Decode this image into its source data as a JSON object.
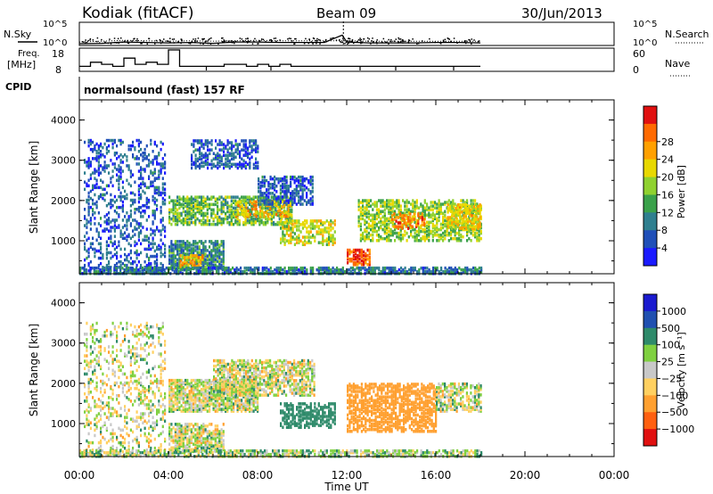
{
  "header": {
    "station": "Kodiak (fitACF)",
    "beam": "Beam 09",
    "date": "30/Jun/2013"
  },
  "labels": {
    "nsky": "N.Sky",
    "nsearch": "N.Search",
    "freq": "Freq.",
    "mhz": "[MHz]",
    "cpid": "CPID",
    "nave": "Nave",
    "cpid_name": "normalsound (fast) 157 RF",
    "xaxis": "Time UT",
    "yaxis": "Slant Range [km]",
    "power_scale": "Power [dB]",
    "velocity_scale": "Velocity [m s⁻¹]"
  },
  "chart_data": [
    {
      "type": "line",
      "panel": "noise",
      "ylabel_left": "N.Sky",
      "ylabel_right": "N.Search",
      "yticks_left": [
        "10^5",
        "10^0"
      ],
      "yticks_right": [
        "10^5",
        "10^0"
      ],
      "series": [
        {
          "name": "N.Sky",
          "x_hours": [
            0,
            1,
            2,
            3,
            4,
            5,
            6,
            7,
            8,
            9,
            10,
            11,
            11.8,
            12,
            13,
            14,
            15,
            16,
            17,
            18
          ],
          "values_log10": [
            0.2,
            0.3,
            0.6,
            0.5,
            0.4,
            0.5,
            0.3,
            0.6,
            0.6,
            0.5,
            0.5,
            0.5,
            2.2,
            0.6,
            0.4,
            0.4,
            0.4,
            0.5,
            0.5,
            0.4
          ]
        },
        {
          "name": "N.Search",
          "x_hours": [
            0,
            1,
            2,
            3,
            4,
            5,
            6,
            7,
            8,
            9,
            10,
            11,
            12,
            13,
            14,
            15,
            16,
            17,
            18
          ],
          "values_log10": [
            0.6,
            0.8,
            1.0,
            0.9,
            0.8,
            0.9,
            0.8,
            0.9,
            1.0,
            0.9,
            0.9,
            0.9,
            0.9,
            0.8,
            0.8,
            0.8,
            0.8,
            0.8,
            0.8
          ]
        }
      ]
    },
    {
      "type": "line",
      "panel": "frequency",
      "ylabel_left": "Freq. [MHz]",
      "ylabel_right": "Nave",
      "yticks_left": [
        "18",
        "8"
      ],
      "yticks_right": [
        "60",
        "0"
      ],
      "series": [
        {
          "name": "Freq.",
          "x_hours": [
            0,
            0.5,
            1,
            1.5,
            2,
            2.5,
            3,
            3.5,
            4,
            4.5,
            5,
            5.5,
            6,
            6.5,
            7,
            7.5,
            8,
            8.5,
            9,
            9.5,
            10,
            10.5,
            11,
            11.5,
            12,
            12.5,
            13,
            13.5,
            14,
            14.5,
            15,
            15.5,
            16,
            16.5,
            17,
            17.5,
            18
          ],
          "values": [
            10,
            12,
            11,
            10,
            14,
            11,
            12,
            11,
            18,
            10,
            10,
            10,
            10,
            11,
            11,
            10,
            11,
            10,
            11,
            10,
            10,
            10,
            10,
            10,
            10,
            10,
            10,
            10,
            10,
            10,
            10,
            10,
            10,
            10,
            10,
            10,
            10
          ]
        },
        {
          "name": "Nave",
          "x_hours": [
            0,
            6,
            12,
            18
          ],
          "values": [
            0,
            0,
            0,
            0
          ]
        }
      ]
    },
    {
      "type": "heatmap",
      "panel": "power",
      "parameter": "Power [dB]",
      "x_range_hours": [
        0,
        24
      ],
      "xticks": [
        "00:00",
        "04:00",
        "08:00",
        "12:00",
        "16:00",
        "20:00",
        "00:00"
      ],
      "xlabel": "",
      "ylabel": "Slant Range [km]",
      "yticks": [
        "1000",
        "2000",
        "3000",
        "4000"
      ],
      "ylim": [
        180,
        4500
      ],
      "colorbar": {
        "ticks": [
          "4",
          "8",
          "12",
          "16",
          "20",
          "24",
          "28"
        ],
        "colors": [
          "#1a1aff",
          "#1f4fb8",
          "#2f7f8f",
          "#3aa14a",
          "#8fd12f",
          "#e8d800",
          "#ffa000",
          "#ff6a00",
          "#e01010"
        ]
      },
      "regions": [
        {
          "t": [
            0.2,
            3.8
          ],
          "r": [
            200,
            3500
          ],
          "value": 6,
          "density": 0.25
        },
        {
          "t": [
            4.0,
            6.5
          ],
          "r": [
            300,
            1000
          ],
          "value": 10,
          "density": 0.7
        },
        {
          "t": [
            4.5,
            5.5
          ],
          "r": [
            350,
            650
          ],
          "value": 22,
          "density": 0.6
        },
        {
          "t": [
            4.0,
            9.5
          ],
          "r": [
            1400,
            2100
          ],
          "value": 14,
          "density": 0.6
        },
        {
          "t": [
            7.0,
            9.5
          ],
          "r": [
            1600,
            2000
          ],
          "value": 22,
          "density": 0.4
        },
        {
          "t": [
            5.0,
            8.0
          ],
          "r": [
            2800,
            3500
          ],
          "value": 6,
          "density": 0.5
        },
        {
          "t": [
            8.0,
            10.5
          ],
          "r": [
            1900,
            2600
          ],
          "value": 6,
          "density": 0.5
        },
        {
          "t": [
            9.0,
            11.5
          ],
          "r": [
            900,
            1500
          ],
          "value": 18,
          "density": 0.5
        },
        {
          "t": [
            12.0,
            13.0
          ],
          "r": [
            400,
            800
          ],
          "value": 28,
          "density": 0.7
        },
        {
          "t": [
            12.5,
            18.0
          ],
          "r": [
            1000,
            2000
          ],
          "value": 16,
          "density": 0.5
        },
        {
          "t": [
            14.0,
            15.5
          ],
          "r": [
            1300,
            1700
          ],
          "value": 26,
          "density": 0.4
        },
        {
          "t": [
            16.5,
            18.0
          ],
          "r": [
            1300,
            1900
          ],
          "value": 20,
          "density": 0.6
        },
        {
          "t": [
            0.0,
            18.0
          ],
          "r": [
            180,
            350
          ],
          "value": 8,
          "density": 0.7
        }
      ]
    },
    {
      "type": "heatmap",
      "panel": "velocity",
      "parameter": "Velocity [m s-1]",
      "x_range_hours": [
        0,
        24
      ],
      "xticks": [
        "00:00",
        "04:00",
        "08:00",
        "12:00",
        "16:00",
        "20:00",
        "00:00"
      ],
      "xlabel": "Time UT",
      "ylabel": "Slant Range [km]",
      "yticks": [
        "1000",
        "2000",
        "3000",
        "4000"
      ],
      "ylim": [
        180,
        4500
      ],
      "colorbar": {
        "ticks": [
          "1000",
          "500",
          "100",
          "25",
          "−25",
          "−100",
          "−500",
          "−1000"
        ],
        "colors": [
          "#1a1acf",
          "#2050b0",
          "#2e8a6a",
          "#7fd040",
          "#c8c8c8",
          "#ffd060",
          "#ffa030",
          "#ff6010",
          "#e01010"
        ]
      },
      "regions": [
        {
          "t": [
            0.2,
            3.8
          ],
          "r": [
            200,
            3500
          ],
          "value": 0,
          "density": 0.2
        },
        {
          "t": [
            4.0,
            8.0
          ],
          "r": [
            1300,
            2100
          ],
          "value": 0,
          "density": 0.7
        },
        {
          "t": [
            6.0,
            10.5
          ],
          "r": [
            1700,
            2600
          ],
          "value": 0,
          "density": 0.6
        },
        {
          "t": [
            4.0,
            6.5
          ],
          "r": [
            300,
            1000
          ],
          "value": 0,
          "density": 0.6
        },
        {
          "t": [
            9.0,
            11.5
          ],
          "r": [
            900,
            1500
          ],
          "value": 300,
          "density": 0.5
        },
        {
          "t": [
            12.0,
            16.0
          ],
          "r": [
            800,
            2000
          ],
          "value": -300,
          "density": 0.6
        },
        {
          "t": [
            16.0,
            18.0
          ],
          "r": [
            1300,
            2000
          ],
          "value": 0,
          "density": 0.5
        },
        {
          "t": [
            0.0,
            18.0
          ],
          "r": [
            180,
            350
          ],
          "value": 50,
          "density": 0.6
        }
      ]
    }
  ]
}
